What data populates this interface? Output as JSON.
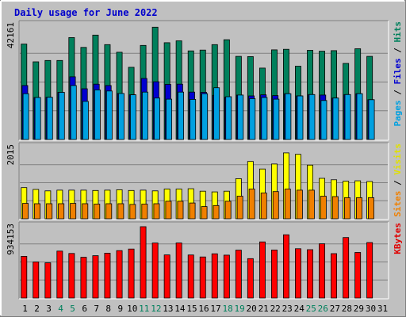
{
  "chart_data": {
    "type": "bar",
    "title": "Daily usage for June 2022",
    "days": [
      "1",
      "2",
      "3",
      "4",
      "5",
      "6",
      "7",
      "8",
      "9",
      "10",
      "11",
      "12",
      "13",
      "14",
      "15",
      "16",
      "17",
      "18",
      "19",
      "20",
      "21",
      "22",
      "23",
      "24",
      "25",
      "26",
      "27",
      "28",
      "29",
      "30",
      "31"
    ],
    "weekend_days": [
      "4",
      "5",
      "11",
      "12",
      "18",
      "19",
      "25",
      "26"
    ],
    "panels": [
      {
        "max_label": "42161",
        "ymax": 42161,
        "right_label": [
          {
            "text": "Pages",
            "color": "#00a0e0"
          },
          {
            "text": " / ",
            "color": "#000000"
          },
          {
            "text": "Files",
            "color": "#0000d0"
          },
          {
            "text": " / ",
            "color": "#000000"
          },
          {
            "text": "Hits",
            "color": "#00805c"
          }
        ],
        "series": [
          {
            "name": "Hits",
            "color": "#00805c",
            "values": [
              35000,
              28500,
              29000,
              29000,
              37400,
              33800,
              38300,
              34800,
              32000,
              26500,
              34500,
              41200,
              35500,
              36200,
              32500,
              32800,
              34800,
              36600,
              30500,
              30400,
              26200,
              32900,
              33100,
              26900,
              32700,
              32400,
              32600,
              27900,
              33300,
              30500,
              null
            ]
          },
          {
            "name": "Files",
            "color": "#0000d0",
            "values": [
              19800,
              15400,
              15500,
              17300,
              23000,
              18600,
              20300,
              19800,
              16900,
              16400,
              22400,
              21200,
              20200,
              20300,
              17400,
              17300,
              16200,
              15500,
              16300,
              16000,
              16400,
              16100,
              16800,
              16000,
              16500,
              16300,
              15200,
              16500,
              16800,
              14600,
              null
            ]
          },
          {
            "name": "Pages",
            "color": "#00a0e0",
            "values": [
              16800,
              15400,
              15500,
              17300,
              19800,
              14000,
              18200,
              17800,
              16900,
              16400,
              17400,
              15200,
              14800,
              17400,
              14700,
              16800,
              19000,
              15700,
              16300,
              15000,
              15400,
              14800,
              16800,
              16000,
              16500,
              14300,
              15200,
              16500,
              16800,
              14600,
              null
            ]
          }
        ]
      },
      {
        "max_label": "2015",
        "ymax": 2015,
        "right_label": [
          {
            "text": "Sites",
            "color": "#f08000"
          },
          {
            "text": " / ",
            "color": "#000000"
          },
          {
            "text": "Visits",
            "color": "#e0e000"
          }
        ],
        "series": [
          {
            "name": "Visits",
            "color": "#ffff00",
            "values": [
              870,
              820,
              780,
              800,
              800,
              800,
              790,
              800,
              810,
              790,
              800,
              780,
              830,
              830,
              840,
              770,
              750,
              770,
              1120,
              1600,
              1390,
              1530,
              1840,
              1800,
              1500,
              1130,
              1090,
              1050,
              1060,
              1040,
              null
            ]
          },
          {
            "name": "Sites",
            "color": "#f08000",
            "values": [
              430,
              420,
              420,
              420,
              430,
              420,
              410,
              420,
              420,
              400,
              410,
              420,
              490,
              490,
              440,
              340,
              370,
              490,
              630,
              830,
              720,
              760,
              830,
              800,
              800,
              630,
              620,
              590,
              590,
              590,
              null
            ]
          }
        ]
      },
      {
        "max_label": "934153",
        "ymax": 934153,
        "right_label": [
          {
            "text": "KBytes",
            "color": "#e00000"
          }
        ],
        "series": [
          {
            "name": "KBytes",
            "color": "#ff0000",
            "values": [
              540000,
              467000,
              456000,
              608000,
              577000,
              528000,
              548000,
              581000,
              614000,
              634000,
              924000,
              712000,
              558000,
              713000,
              557000,
              532000,
              573000,
              555000,
              620000,
              510000,
              727000,
              622000,
              819000,
              638000,
              626000,
              702000,
              575000,
              783000,
              590000,
              719000,
              null
            ]
          }
        ]
      }
    ]
  }
}
